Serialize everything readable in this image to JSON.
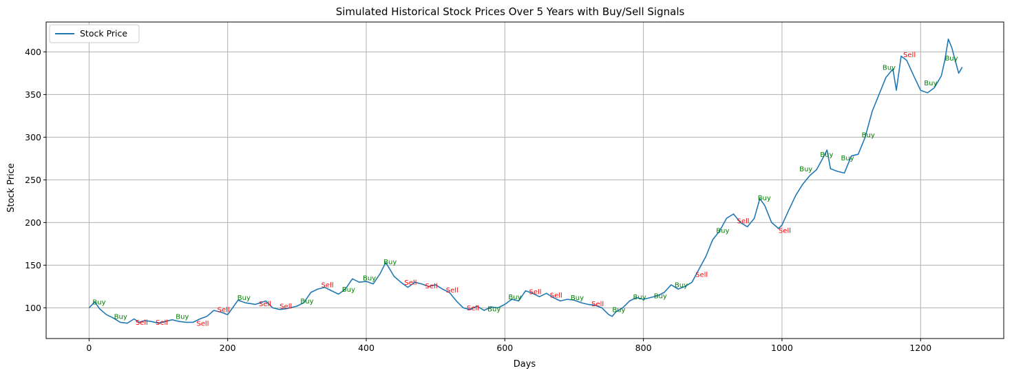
{
  "chart_data": {
    "type": "line",
    "title": "Simulated Historical Stock Prices Over 5 Years with Buy/Sell Signals",
    "xlabel": "Days",
    "ylabel": "Stock Price",
    "xlim": [
      -62,
      1320
    ],
    "ylim": [
      64,
      435
    ],
    "xticks": [
      0,
      200,
      400,
      600,
      800,
      1000,
      1200
    ],
    "yticks": [
      100,
      150,
      200,
      250,
      300,
      350,
      400
    ],
    "grid": true,
    "legend": "top-left",
    "colors": {
      "line": "#1f77b4",
      "buy": "#008000",
      "sell": "#ff0000",
      "grid": "#b0b0b0"
    },
    "series": [
      {
        "name": "Stock Price",
        "x": [
          0,
          8,
          15,
          25,
          35,
          45,
          55,
          65,
          72,
          80,
          90,
          100,
          110,
          120,
          130,
          140,
          150,
          160,
          170,
          180,
          190,
          200,
          208,
          215,
          225,
          240,
          255,
          265,
          275,
          285,
          300,
          310,
          320,
          330,
          340,
          350,
          360,
          370,
          380,
          390,
          400,
          410,
          420,
          428,
          432,
          440,
          450,
          460,
          470,
          480,
          490,
          500,
          510,
          520,
          530,
          540,
          550,
          560,
          570,
          580,
          590,
          600,
          610,
          620,
          630,
          640,
          650,
          660,
          670,
          680,
          690,
          700,
          710,
          720,
          730,
          740,
          750,
          755,
          760,
          770,
          780,
          790,
          800,
          810,
          820,
          830,
          840,
          850,
          860,
          870,
          880,
          890,
          900,
          910,
          920,
          930,
          940,
          950,
          960,
          968,
          975,
          985,
          995,
          1000,
          1010,
          1020,
          1030,
          1040,
          1050,
          1060,
          1065,
          1070,
          1080,
          1090,
          1100,
          1110,
          1120,
          1130,
          1140,
          1150,
          1160,
          1165,
          1172,
          1180,
          1190,
          1200,
          1210,
          1220,
          1230,
          1235,
          1240,
          1245,
          1250,
          1255,
          1260
        ],
        "values": [
          100,
          107,
          99,
          92,
          88,
          83,
          82,
          87,
          83,
          85,
          84,
          82,
          84,
          86,
          84,
          83,
          83,
          87,
          90,
          97,
          95,
          92,
          101,
          109,
          106,
          104,
          108,
          100,
          98,
          99,
          102,
          106,
          118,
          122,
          124,
          120,
          116,
          122,
          134,
          130,
          131,
          128,
          140,
          153,
          148,
          137,
          130,
          124,
          130,
          128,
          125,
          127,
          122,
          118,
          108,
          100,
          98,
          102,
          97,
          101,
          100,
          104,
          110,
          108,
          120,
          117,
          113,
          117,
          112,
          108,
          110,
          109,
          106,
          104,
          103,
          100,
          92,
          90,
          95,
          100,
          108,
          112,
          110,
          112,
          114,
          118,
          127,
          122,
          125,
          130,
          145,
          160,
          180,
          190,
          205,
          210,
          200,
          195,
          205,
          228,
          220,
          200,
          193,
          197,
          215,
          232,
          245,
          255,
          262,
          277,
          285,
          263,
          260,
          258,
          278,
          280,
          300,
          330,
          350,
          370,
          380,
          355,
          395,
          390,
          372,
          355,
          352,
          358,
          372,
          390,
          415,
          405,
          390,
          375,
          382
        ]
      }
    ],
    "signals": [
      {
        "label": "Buy",
        "x": 5,
        "y": 104
      },
      {
        "label": "Buy",
        "x": 36,
        "y": 87
      },
      {
        "label": "Sell",
        "x": 67,
        "y": 80
      },
      {
        "label": "Sell",
        "x": 96,
        "y": 80
      },
      {
        "label": "Buy",
        "x": 125,
        "y": 87
      },
      {
        "label": "Sell",
        "x": 155,
        "y": 79
      },
      {
        "label": "Sell",
        "x": 185,
        "y": 95
      },
      {
        "label": "Buy",
        "x": 214,
        "y": 109
      },
      {
        "label": "Sell",
        "x": 245,
        "y": 102
      },
      {
        "label": "Sell",
        "x": 275,
        "y": 99
      },
      {
        "label": "Buy",
        "x": 305,
        "y": 105
      },
      {
        "label": "Sell",
        "x": 335,
        "y": 124
      },
      {
        "label": "Buy",
        "x": 365,
        "y": 119
      },
      {
        "label": "Buy",
        "x": 395,
        "y": 132
      },
      {
        "label": "Buy",
        "x": 425,
        "y": 151
      },
      {
        "label": "Sell",
        "x": 455,
        "y": 127
      },
      {
        "label": "Sell",
        "x": 485,
        "y": 123
      },
      {
        "label": "Sell",
        "x": 515,
        "y": 118
      },
      {
        "label": "Sell",
        "x": 545,
        "y": 97
      },
      {
        "label": "Buy",
        "x": 575,
        "y": 96
      },
      {
        "label": "Buy",
        "x": 605,
        "y": 110
      },
      {
        "label": "Sell",
        "x": 635,
        "y": 116
      },
      {
        "label": "Sell",
        "x": 665,
        "y": 112
      },
      {
        "label": "Buy",
        "x": 695,
        "y": 109
      },
      {
        "label": "Sell",
        "x": 725,
        "y": 102
      },
      {
        "label": "Buy",
        "x": 755,
        "y": 95
      },
      {
        "label": "Buy",
        "x": 785,
        "y": 110
      },
      {
        "label": "Buy",
        "x": 815,
        "y": 111
      },
      {
        "label": "Buy",
        "x": 845,
        "y": 124
      },
      {
        "label": "Sell",
        "x": 875,
        "y": 136
      },
      {
        "label": "Buy",
        "x": 905,
        "y": 188
      },
      {
        "label": "Sell",
        "x": 935,
        "y": 199
      },
      {
        "label": "Buy",
        "x": 965,
        "y": 226
      },
      {
        "label": "Sell",
        "x": 995,
        "y": 188
      },
      {
        "label": "Buy",
        "x": 1025,
        "y": 260
      },
      {
        "label": "Buy",
        "x": 1055,
        "y": 277
      },
      {
        "label": "Buy",
        "x": 1085,
        "y": 273
      },
      {
        "label": "Buy",
        "x": 1115,
        "y": 300
      },
      {
        "label": "Buy",
        "x": 1145,
        "y": 379
      },
      {
        "label": "Sell",
        "x": 1175,
        "y": 394
      },
      {
        "label": "Buy",
        "x": 1205,
        "y": 361
      },
      {
        "label": "Buy",
        "x": 1235,
        "y": 390
      }
    ]
  }
}
